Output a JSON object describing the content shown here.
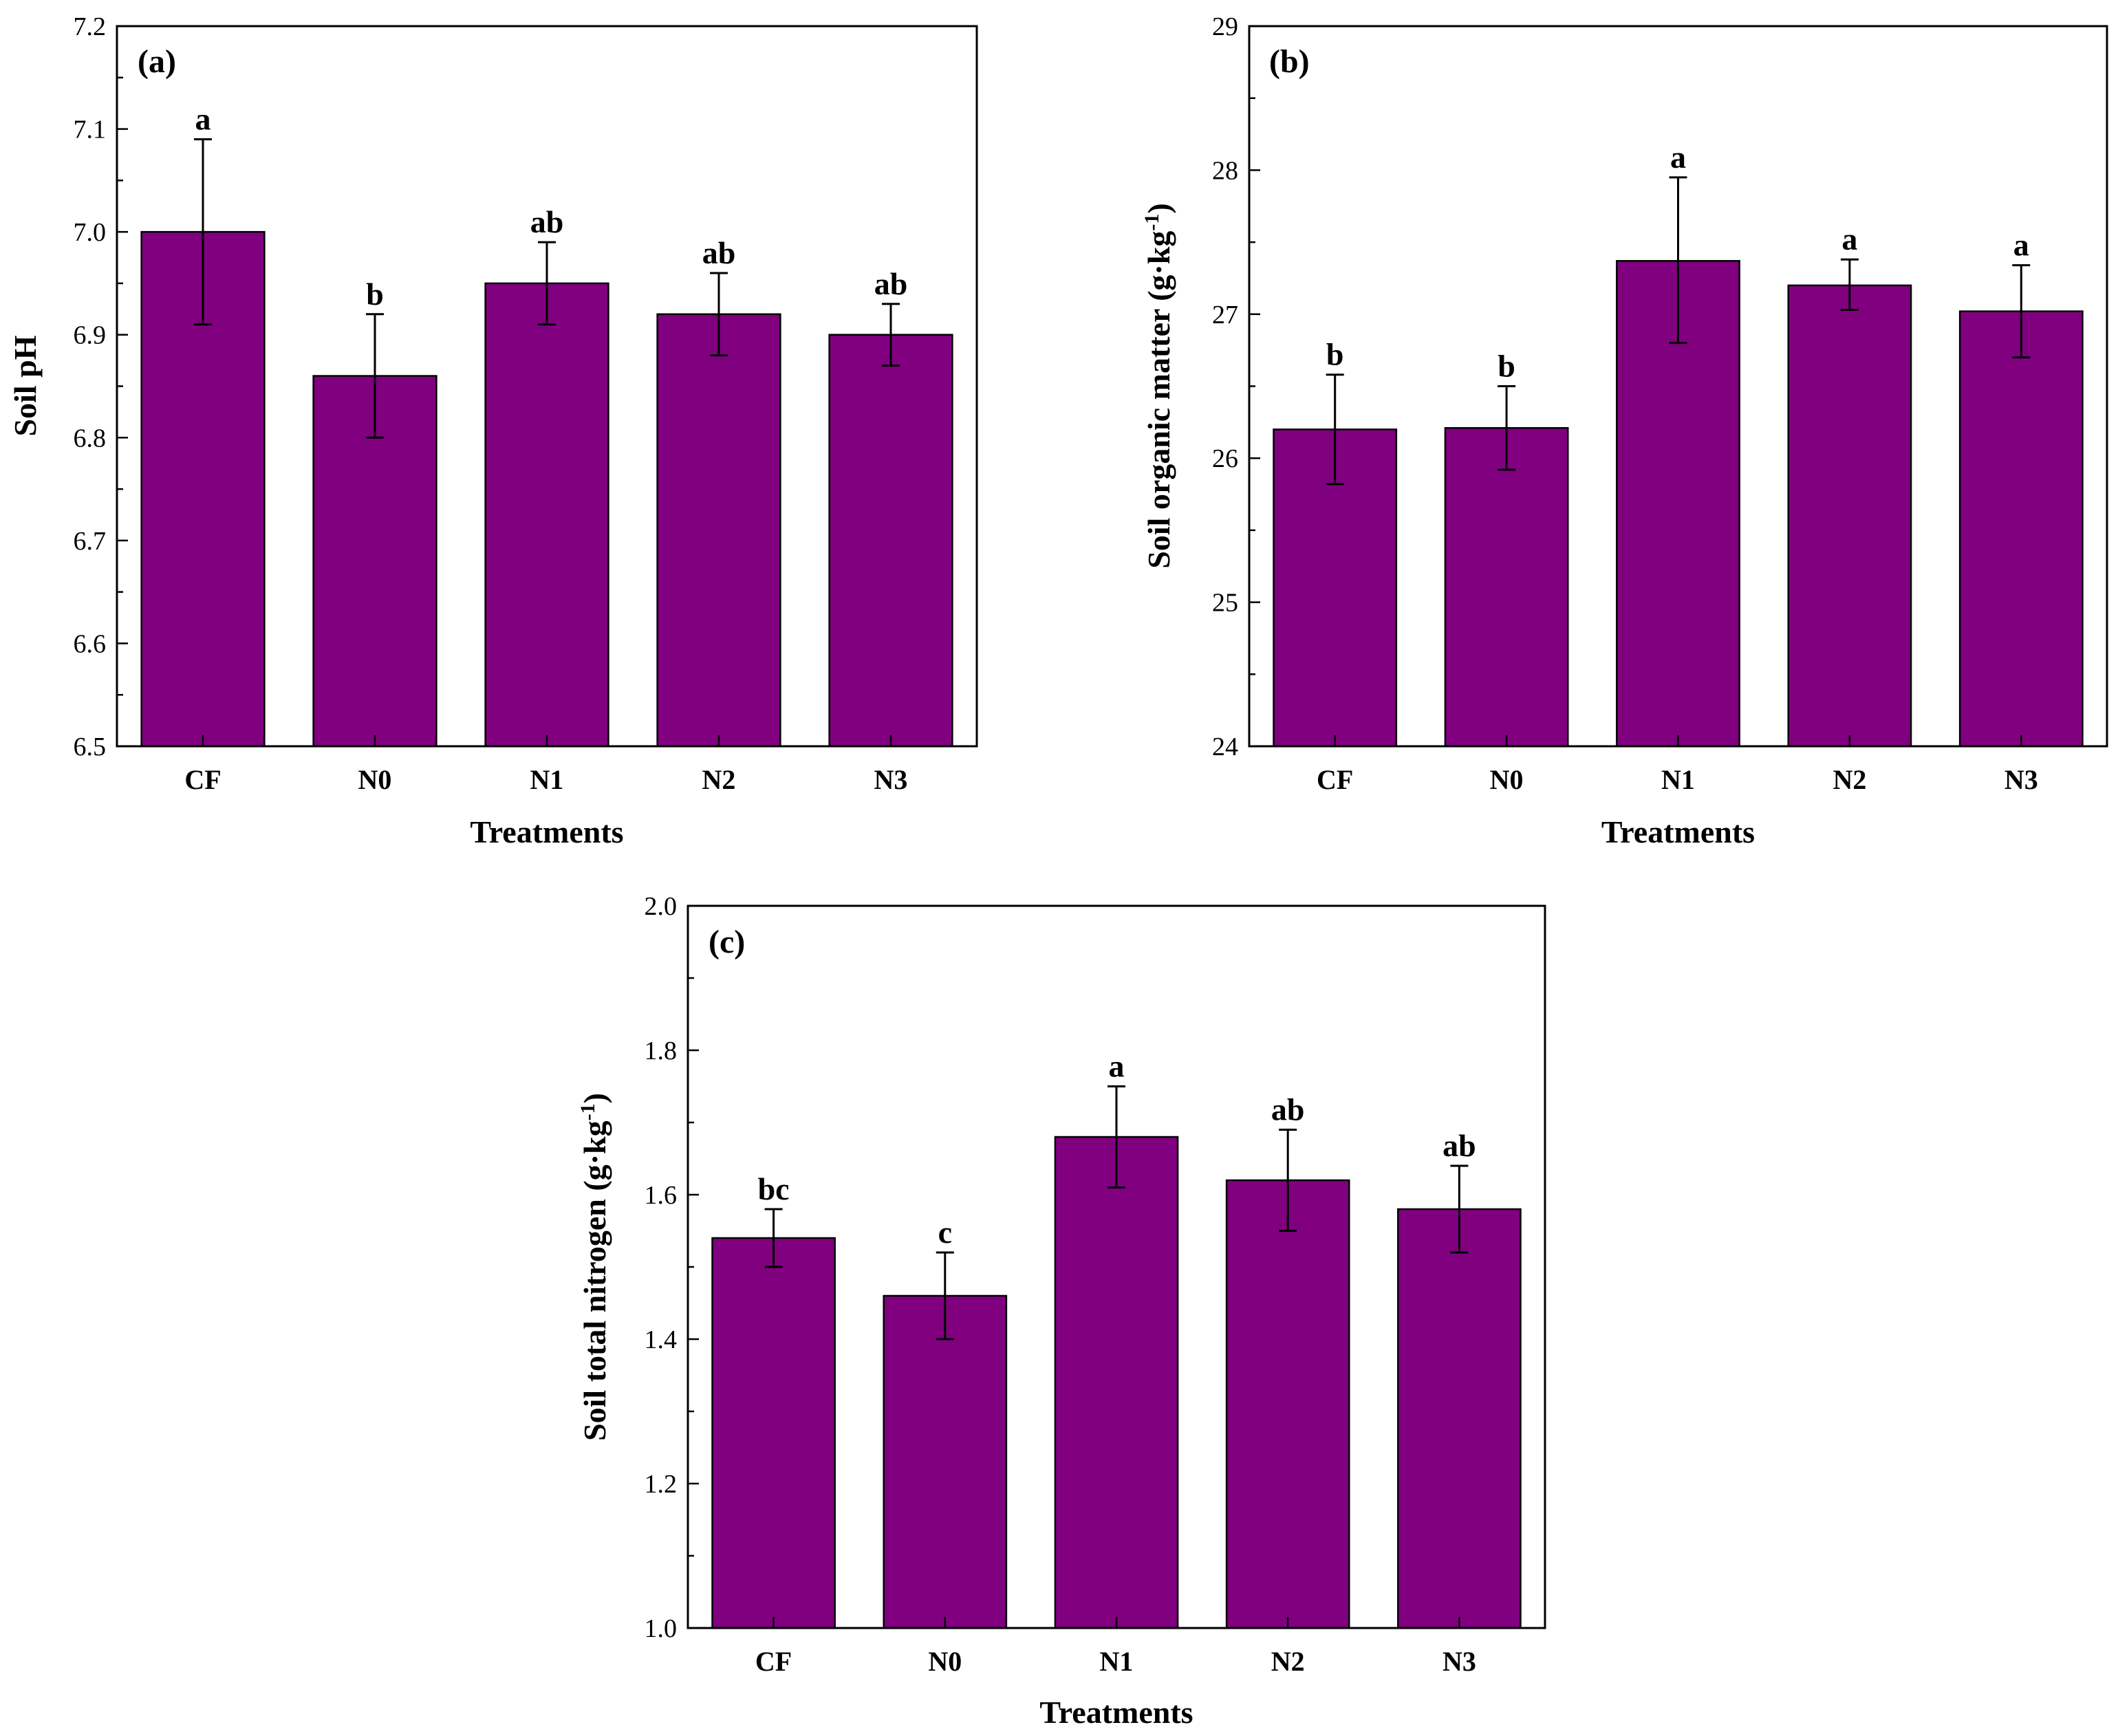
{
  "colors": {
    "bar_fill": "#800080",
    "axis": "#000000",
    "background": "#ffffff"
  },
  "chart_data": [
    {
      "type": "bar",
      "panel_label": "(a)",
      "categories": [
        "CF",
        "N0",
        "N1",
        "N2",
        "N3"
      ],
      "values": [
        7.0,
        6.86,
        6.95,
        6.92,
        6.9
      ],
      "error_low": [
        6.91,
        6.8,
        6.91,
        6.88,
        6.87
      ],
      "error_high": [
        7.09,
        6.92,
        6.99,
        6.96,
        6.93
      ],
      "significance": [
        "a",
        "b",
        "ab",
        "ab",
        "ab"
      ],
      "xlabel": "Treatments",
      "ylabel": "Soil pH",
      "ylabel_sup": "",
      "ylabel_end": "",
      "ylim": [
        6.5,
        7.2
      ],
      "yticks": [
        "6.5",
        "6.6",
        "6.7",
        "6.8",
        "6.9",
        "7.0",
        "7.1",
        "7.2"
      ],
      "grid": false
    },
    {
      "type": "bar",
      "panel_label": "(b)",
      "categories": [
        "CF",
        "N0",
        "N1",
        "N2",
        "N3"
      ],
      "values": [
        26.2,
        26.21,
        27.37,
        27.2,
        27.02
      ],
      "error_low": [
        25.82,
        25.92,
        26.8,
        27.03,
        26.7
      ],
      "error_high": [
        26.58,
        26.5,
        27.95,
        27.38,
        27.34
      ],
      "significance": [
        "b",
        "b",
        "a",
        "a",
        "a"
      ],
      "xlabel": "Treatments",
      "ylabel": "Soil organic matter (g·kg",
      "ylabel_sup": "-1",
      "ylabel_end": ")",
      "ylim": [
        24,
        29
      ],
      "yticks": [
        "24",
        "25",
        "26",
        "27",
        "28",
        "29"
      ],
      "grid": false
    },
    {
      "type": "bar",
      "panel_label": "(c)",
      "categories": [
        "CF",
        "N0",
        "N1",
        "N2",
        "N3"
      ],
      "values": [
        1.54,
        1.46,
        1.68,
        1.62,
        1.58
      ],
      "error_low": [
        1.5,
        1.4,
        1.61,
        1.55,
        1.52
      ],
      "error_high": [
        1.58,
        1.52,
        1.75,
        1.69,
        1.64
      ],
      "significance": [
        "bc",
        "c",
        "a",
        "ab",
        "ab"
      ],
      "xlabel": "Treatments",
      "ylabel": "Soil total nitrogen (g·kg",
      "ylabel_sup": "-1",
      "ylabel_end": ")",
      "ylim": [
        1.0,
        2.0
      ],
      "yticks": [
        "1.0",
        "1.2",
        "1.4",
        "1.6",
        "1.8",
        "2.0"
      ],
      "grid": false
    }
  ]
}
